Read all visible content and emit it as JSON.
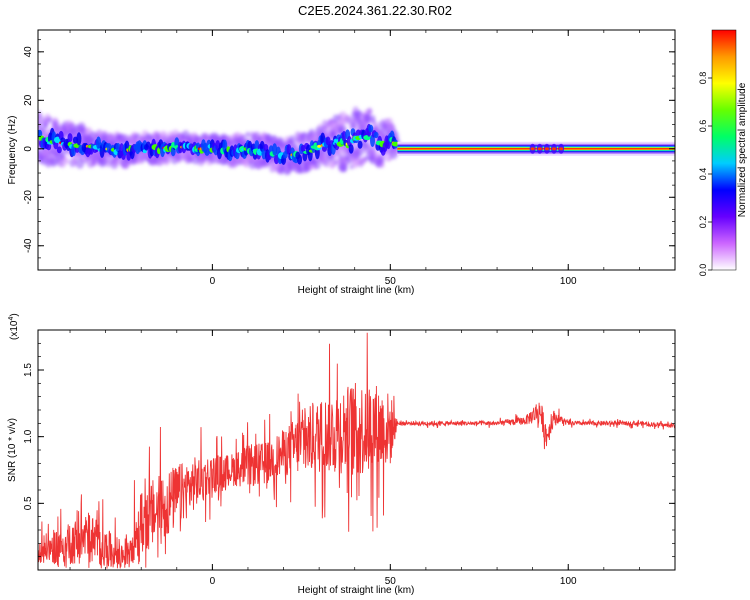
{
  "title": "C2E5.2024.361.22.30.R02",
  "chart_data": [
    {
      "type": "heatmap",
      "xlabel": "Height of straight line (km)",
      "ylabel": "Frequency (Hz)",
      "xlim": [
        -49,
        130
      ],
      "ylim": [
        -50,
        49
      ],
      "xticks": [
        "0",
        "50",
        "100"
      ],
      "xtick_values": [
        0,
        50,
        100
      ],
      "yticks": [
        "-40",
        "-20",
        "0",
        "20",
        "40"
      ],
      "ytick_values": [
        -40,
        -20,
        0,
        20,
        40
      ],
      "colorbar": {
        "label": "Normalized spectral amplitude",
        "ticks": [
          "0.0",
          "0.2",
          "0.4",
          "0.6",
          "0.8"
        ],
        "tick_values": [
          0.0,
          0.2,
          0.4,
          0.6,
          0.8
        ],
        "colors": [
          "#ffffff",
          "#cc66ff",
          "#6600ff",
          "#0000ff",
          "#00ccff",
          "#00ff66",
          "#66ff00",
          "#ffff00",
          "#ff9900",
          "#ff0000"
        ]
      },
      "band_centerline": {
        "x": [
          -49,
          -45,
          -40,
          -35,
          -30,
          -25,
          -20,
          -15,
          -10,
          -5,
          0,
          5,
          10,
          15,
          20,
          25,
          30,
          35,
          38,
          40,
          42,
          44,
          46,
          48,
          50,
          52,
          60,
          80,
          90,
          95,
          100,
          130
        ],
        "y": [
          4,
          3,
          2,
          1,
          0,
          -1,
          0,
          0,
          1,
          0,
          0,
          -1,
          0,
          -1,
          -3,
          -2,
          1,
          3,
          2,
          5,
          4,
          6,
          3,
          2,
          4,
          1,
          0,
          0,
          0,
          0,
          0,
          0
        ]
      },
      "band_spread_hz": {
        "x": [
          -49,
          -30,
          0,
          30,
          40,
          50,
          52,
          130
        ],
        "y": [
          10,
          6,
          5,
          8,
          12,
          8,
          1.5,
          1.5
        ]
      }
    },
    {
      "type": "line",
      "xlabel": "Height of straight line (km)",
      "ylabel": "SNR (10 * v/v)",
      "y_multiplier": "(x10",
      "y_multiplier_exp": "4",
      "xlim": [
        -49,
        130
      ],
      "ylim": [
        0,
        1.8
      ],
      "xticks": [
        "0",
        "50",
        "100"
      ],
      "xtick_values": [
        0,
        50,
        100
      ],
      "yticks": [
        "0.5",
        "1.0",
        "1.5"
      ],
      "ytick_values": [
        0.5,
        1.0,
        1.5
      ],
      "series": [
        {
          "color": "#ee3333",
          "envelope_x": [
            -49,
            -40,
            -35,
            -30,
            -25,
            -20,
            -15,
            -10,
            -5,
            0,
            5,
            10,
            15,
            20,
            25,
            30,
            35,
            40,
            45,
            50,
            52,
            60,
            70,
            80,
            88,
            92,
            94,
            96,
            100,
            110,
            120,
            130
          ],
          "envelope_mid": [
            0.15,
            0.2,
            0.25,
            0.15,
            0.1,
            0.35,
            0.45,
            0.55,
            0.65,
            0.72,
            0.75,
            0.78,
            0.8,
            0.88,
            0.95,
            1.0,
            1.05,
            1.05,
            1.07,
            1.05,
            1.1,
            1.1,
            1.1,
            1.1,
            1.12,
            1.2,
            1.0,
            1.15,
            1.1,
            1.1,
            1.1,
            1.08
          ],
          "envelope_amp": [
            0.12,
            0.2,
            0.25,
            0.2,
            0.15,
            0.3,
            0.35,
            0.3,
            0.25,
            0.18,
            0.15,
            0.2,
            0.2,
            0.22,
            0.3,
            0.35,
            0.4,
            0.45,
            0.45,
            0.35,
            0.02,
            0.02,
            0.02,
            0.02,
            0.04,
            0.12,
            0.12,
            0.06,
            0.02,
            0.02,
            0.02,
            0.02
          ]
        }
      ]
    }
  ]
}
